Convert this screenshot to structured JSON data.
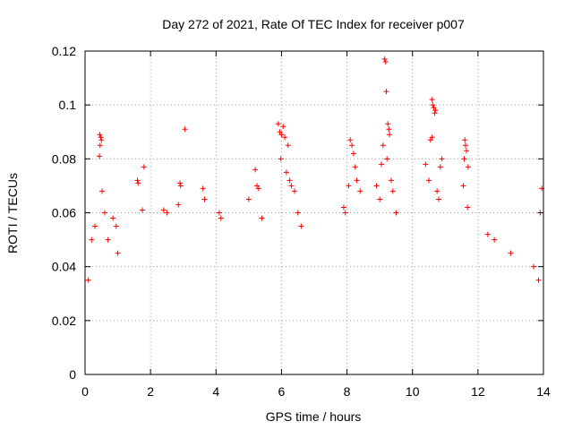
{
  "chart_data": {
    "type": "scatter",
    "title": "Day 272 of 2021, Rate Of TEC Index for receiver p007",
    "xlabel": "GPS time / hours",
    "ylabel": "ROTI / TECUs",
    "xlim": [
      0,
      14
    ],
    "ylim": [
      0,
      0.12
    ],
    "x_ticks": [
      0,
      2,
      4,
      6,
      8,
      10,
      12,
      14
    ],
    "x_tick_labels": [
      "0",
      "2",
      "4",
      "6",
      "8",
      "10",
      "12",
      "14"
    ],
    "y_ticks": [
      0,
      0.02,
      0.04,
      0.06,
      0.08,
      0.1,
      0.12
    ],
    "y_tick_labels": [
      "0",
      "0.02",
      "0.04",
      "0.06",
      "0.08",
      "0.1",
      "0.12"
    ],
    "grid": true,
    "marker": "+",
    "marker_color": "#ff0000",
    "series": [
      {
        "name": "p007",
        "points": [
          [
            0.45,
            0.089
          ],
          [
            0.48,
            0.088
          ],
          [
            0.5,
            0.087
          ],
          [
            0.46,
            0.085
          ],
          [
            0.44,
            0.081
          ],
          [
            0.52,
            0.068
          ],
          [
            0.3,
            0.055
          ],
          [
            0.6,
            0.06
          ],
          [
            0.85,
            0.058
          ],
          [
            0.95,
            0.055
          ],
          [
            1.0,
            0.045
          ],
          [
            0.2,
            0.05
          ],
          [
            0.1,
            0.035
          ],
          [
            0.7,
            0.05
          ],
          [
            1.6,
            0.072
          ],
          [
            1.62,
            0.071
          ],
          [
            1.8,
            0.077
          ],
          [
            1.75,
            0.061
          ],
          [
            3.05,
            0.091
          ],
          [
            2.9,
            0.071
          ],
          [
            2.92,
            0.07
          ],
          [
            2.85,
            0.063
          ],
          [
            2.5,
            0.06
          ],
          [
            2.4,
            0.061
          ],
          [
            3.6,
            0.069
          ],
          [
            3.65,
            0.065
          ],
          [
            4.1,
            0.06
          ],
          [
            4.15,
            0.058
          ],
          [
            5.2,
            0.076
          ],
          [
            5.25,
            0.07
          ],
          [
            5.3,
            0.069
          ],
          [
            5.0,
            0.065
          ],
          [
            5.4,
            0.058
          ],
          [
            5.9,
            0.093
          ],
          [
            5.95,
            0.09
          ],
          [
            6.05,
            0.092
          ],
          [
            6.1,
            0.088
          ],
          [
            6.0,
            0.089
          ],
          [
            6.2,
            0.085
          ],
          [
            5.98,
            0.08
          ],
          [
            6.15,
            0.075
          ],
          [
            6.25,
            0.072
          ],
          [
            6.3,
            0.07
          ],
          [
            6.4,
            0.068
          ],
          [
            6.5,
            0.06
          ],
          [
            6.6,
            0.055
          ],
          [
            8.1,
            0.087
          ],
          [
            8.15,
            0.085
          ],
          [
            8.2,
            0.082
          ],
          [
            8.25,
            0.077
          ],
          [
            8.3,
            0.072
          ],
          [
            8.05,
            0.07
          ],
          [
            8.4,
            0.068
          ],
          [
            7.9,
            0.062
          ],
          [
            7.95,
            0.06
          ],
          [
            9.15,
            0.117
          ],
          [
            9.18,
            0.116
          ],
          [
            9.2,
            0.105
          ],
          [
            9.25,
            0.093
          ],
          [
            9.28,
            0.091
          ],
          [
            9.3,
            0.089
          ],
          [
            9.1,
            0.085
          ],
          [
            9.22,
            0.08
          ],
          [
            9.05,
            0.078
          ],
          [
            9.35,
            0.072
          ],
          [
            9.4,
            0.068
          ],
          [
            9.0,
            0.065
          ],
          [
            8.9,
            0.07
          ],
          [
            9.5,
            0.06
          ],
          [
            10.6,
            0.102
          ],
          [
            10.62,
            0.1
          ],
          [
            10.65,
            0.099
          ],
          [
            10.7,
            0.098
          ],
          [
            10.68,
            0.097
          ],
          [
            10.6,
            0.088
          ],
          [
            10.55,
            0.087
          ],
          [
            10.9,
            0.08
          ],
          [
            10.85,
            0.077
          ],
          [
            10.4,
            0.078
          ],
          [
            10.5,
            0.072
          ],
          [
            10.75,
            0.068
          ],
          [
            10.8,
            0.065
          ],
          [
            11.6,
            0.087
          ],
          [
            11.62,
            0.085
          ],
          [
            11.65,
            0.083
          ],
          [
            11.58,
            0.08
          ],
          [
            11.7,
            0.077
          ],
          [
            11.55,
            0.07
          ],
          [
            11.68,
            0.062
          ],
          [
            12.3,
            0.052
          ],
          [
            12.5,
            0.05
          ],
          [
            13.0,
            0.045
          ],
          [
            13.7,
            0.04
          ],
          [
            13.85,
            0.035
          ],
          [
            13.95,
            0.069
          ],
          [
            13.9,
            0.06
          ]
        ]
      }
    ]
  }
}
